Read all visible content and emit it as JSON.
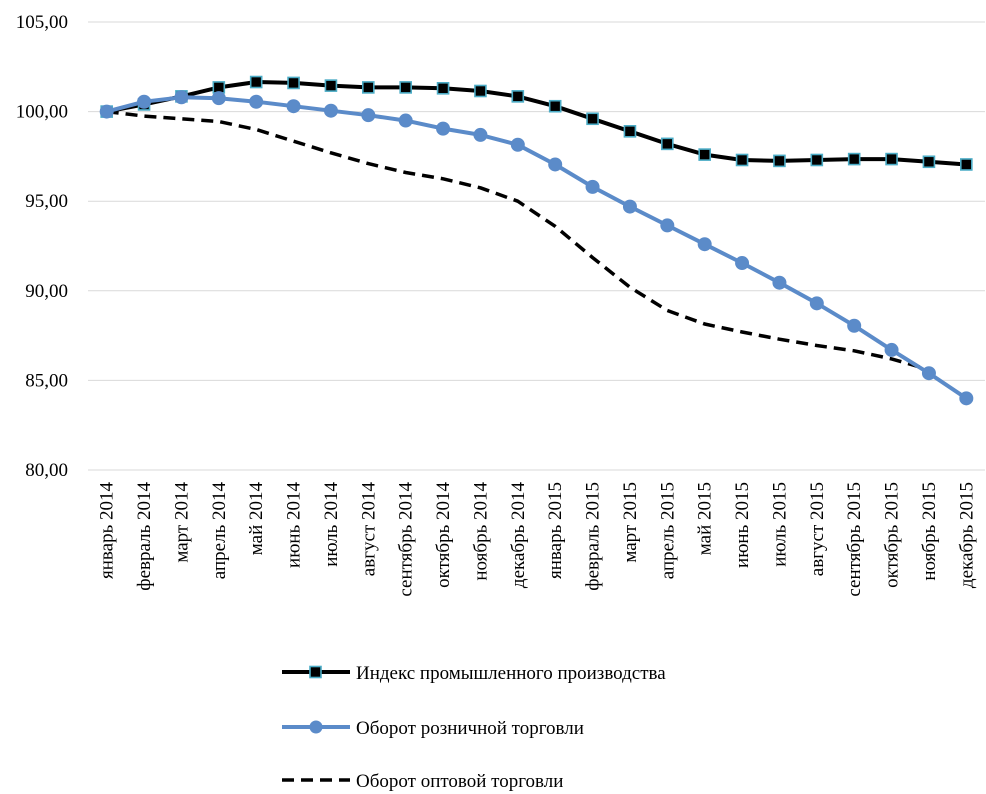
{
  "chart_data": {
    "type": "line",
    "categories": [
      "январь 2014",
      "февраль 2014",
      "март 2014",
      "апрель 2014",
      "май 2014",
      "июнь 2014",
      "июль 2014",
      "август 2014",
      "сентябрь 2014",
      "октябрь 2014",
      "ноябрь 2014",
      "декабрь 2014",
      "январь 2015",
      "февраль 2015",
      "март 2015",
      "апрель 2015",
      "май 2015",
      "июнь 2015",
      "июль 2015",
      "август 2015",
      "сентябрь 2015",
      "октябрь 2015",
      "ноябрь 2015",
      "декабрь 2015"
    ],
    "ylim": [
      80,
      105
    ],
    "yticks": [
      80,
      85,
      90,
      95,
      100,
      105
    ],
    "ytick_labels": [
      "80,00",
      "85,00",
      "90,00",
      "95,00",
      "100,00",
      "105,00"
    ],
    "grid": "horizontal",
    "legend_position": "bottom",
    "series": [
      {
        "name": "Индекс промышленного производства",
        "color": "#000000",
        "marker": "square",
        "marker_color": "#4bacc6",
        "line_style": "solid",
        "values": [
          100.0,
          100.4,
          100.85,
          101.35,
          101.65,
          101.6,
          101.45,
          101.35,
          101.35,
          101.3,
          101.15,
          100.85,
          100.3,
          99.6,
          98.9,
          98.2,
          97.6,
          97.3,
          97.25,
          97.3,
          97.35,
          97.35,
          97.2,
          97.05
        ]
      },
      {
        "name": "Оборот розничной торговли",
        "color": "#5b8bc9",
        "marker": "circle",
        "marker_color": "#5b8bc9",
        "line_style": "solid",
        "values": [
          100.0,
          100.55,
          100.8,
          100.75,
          100.55,
          100.3,
          100.05,
          99.8,
          99.5,
          99.05,
          98.7,
          98.15,
          97.05,
          95.8,
          94.7,
          93.65,
          92.6,
          91.55,
          90.45,
          89.3,
          88.05,
          86.7,
          85.4,
          84.0
        ]
      },
      {
        "name": "Оборот оптовой торговли",
        "color": "#000000",
        "marker": "none",
        "line_style": "dashed",
        "values": [
          100.0,
          99.75,
          99.6,
          99.45,
          99.0,
          98.35,
          97.7,
          97.1,
          96.6,
          96.25,
          95.75,
          95.0,
          93.6,
          91.85,
          90.2,
          88.9,
          88.15,
          87.7,
          87.3,
          86.95,
          86.65,
          86.2,
          85.6,
          null
        ]
      }
    ]
  }
}
